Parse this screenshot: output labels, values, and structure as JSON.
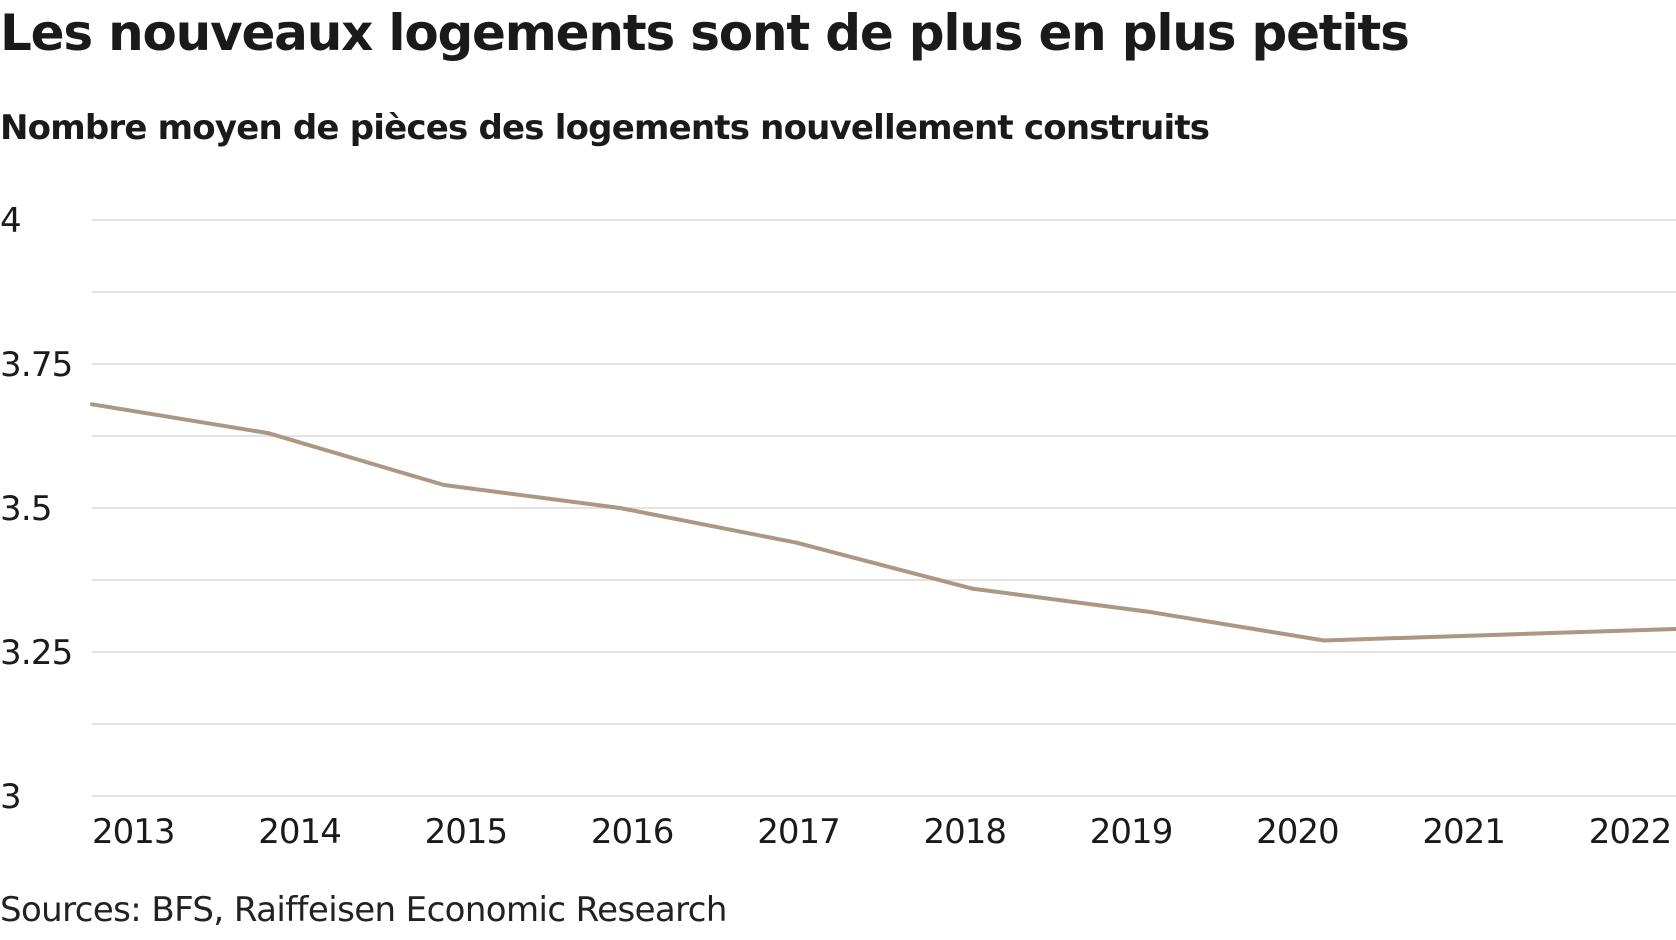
{
  "chart_data": {
    "type": "line",
    "title": "Les nouveaux logements sont de plus en plus petits",
    "subtitle": "Nombre moyen de pièces des logements nouvellement construits",
    "xlabel": "",
    "ylabel": "",
    "x": [
      "2013",
      "2014",
      "2015",
      "2016",
      "2017",
      "2018",
      "2019",
      "2020",
      "2021",
      "2022"
    ],
    "series": [
      {
        "name": "Nombre moyen de pièces",
        "color": "#ab9784",
        "values": [
          3.68,
          3.63,
          3.54,
          3.5,
          3.44,
          3.36,
          3.32,
          3.27,
          3.28,
          3.29
        ]
      }
    ],
    "ylim": [
      3,
      4
    ],
    "yticks": [
      "4",
      "3.75",
      "3.5",
      "3.25",
      "3"
    ],
    "ytick_values": [
      4,
      3.75,
      3.5,
      3.25,
      3
    ],
    "minor_grid_values": [
      3.875,
      3.625,
      3.375,
      3.125
    ],
    "grid": true,
    "grid_color": "#e3e3e3",
    "legend": "none",
    "source": "Sources: BFS, Raiffeisen Economic Research"
  }
}
